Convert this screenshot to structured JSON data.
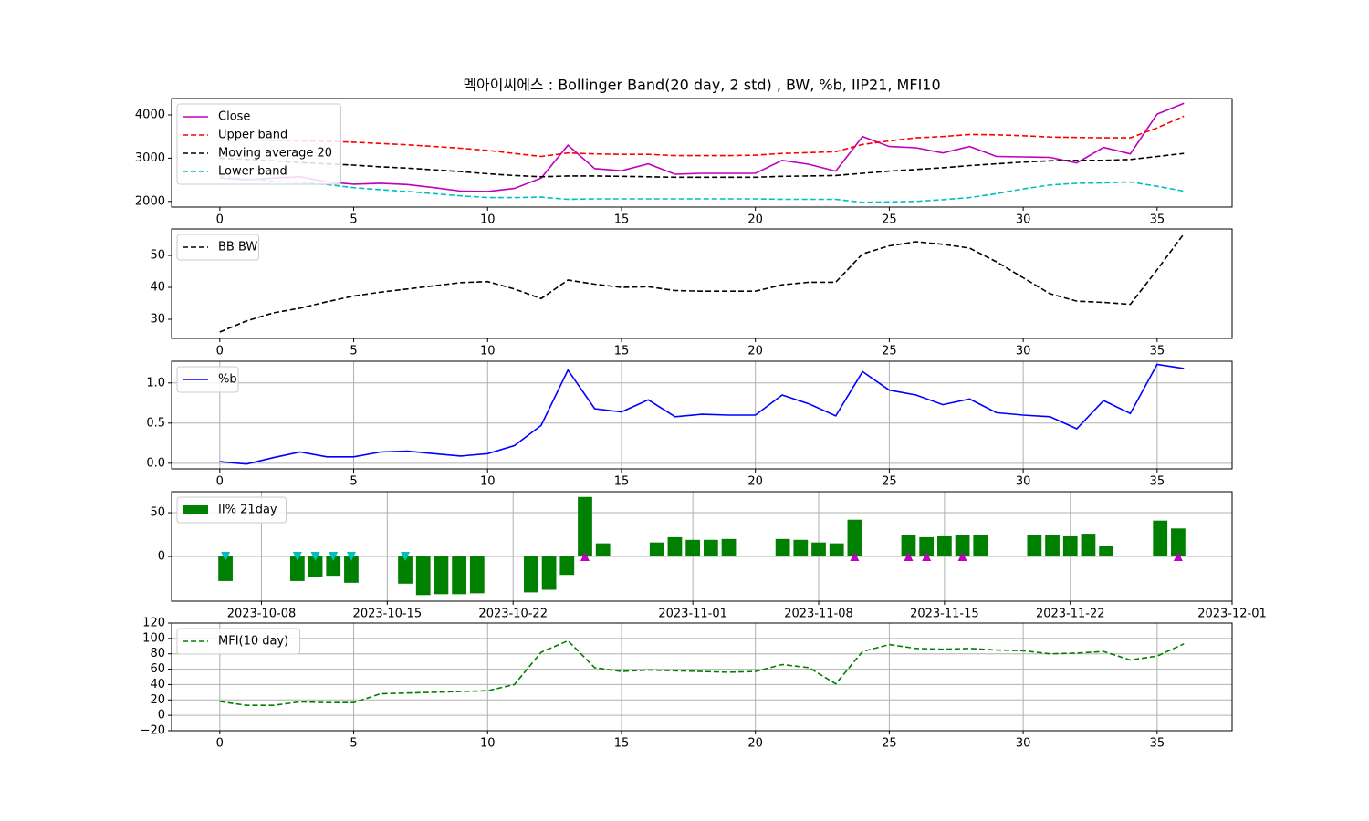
{
  "chart_data": [
    {
      "type": "line",
      "title": "멕아이씨에스 : Bollinger Band(20 day, 2 std) , BW, %b, IIP21, MFI10",
      "x": [
        0,
        1,
        2,
        3,
        4,
        5,
        6,
        7,
        8,
        9,
        10,
        11,
        12,
        13,
        14,
        15,
        16,
        17,
        18,
        19,
        20,
        21,
        22,
        23,
        24,
        25,
        26,
        27,
        28,
        29,
        30,
        31,
        32,
        33,
        34,
        35,
        36
      ],
      "xlim": [
        -1.8,
        37.8
      ],
      "xticks": [
        0,
        5,
        10,
        15,
        20,
        25,
        30,
        35
      ],
      "ylim": [
        1870,
        4380
      ],
      "yticks": [
        2000,
        3000,
        4000
      ],
      "grid": false,
      "legend": "upper left",
      "series": [
        {
          "name": "Close",
          "color": "#bf00bf",
          "linestyle": "solid",
          "values": [
            2540,
            2500,
            2540,
            2570,
            2450,
            2400,
            2420,
            2390,
            2320,
            2240,
            2230,
            2300,
            2540,
            3300,
            2760,
            2710,
            2870,
            2630,
            2650,
            2650,
            2650,
            2950,
            2860,
            2700,
            3500,
            3270,
            3240,
            3120,
            3270,
            3040,
            3030,
            3020,
            2890,
            3250,
            3100,
            4020,
            4270
          ]
        },
        {
          "name": "Upper band",
          "color": "#ff0000",
          "linestyle": "dashed",
          "values": [
            3420,
            3420,
            3410,
            3400,
            3390,
            3370,
            3340,
            3310,
            3270,
            3230,
            3180,
            3110,
            3040,
            3120,
            3100,
            3090,
            3090,
            3060,
            3060,
            3060,
            3070,
            3110,
            3130,
            3150,
            3320,
            3400,
            3470,
            3500,
            3550,
            3540,
            3520,
            3490,
            3480,
            3470,
            3470,
            3700,
            3970
          ]
        },
        {
          "name": "Moving average 20",
          "color": "#000000",
          "linestyle": "dashed",
          "values": [
            3000,
            2970,
            2940,
            2900,
            2870,
            2840,
            2800,
            2770,
            2730,
            2690,
            2640,
            2600,
            2570,
            2590,
            2590,
            2580,
            2570,
            2560,
            2560,
            2560,
            2560,
            2580,
            2590,
            2600,
            2650,
            2700,
            2740,
            2780,
            2830,
            2870,
            2910,
            2940,
            2950,
            2950,
            2970,
            3040,
            3110
          ]
        },
        {
          "name": "Lower band",
          "color": "#00bfbf",
          "linestyle": "dashed",
          "values": [
            2580,
            2520,
            2470,
            2440,
            2390,
            2320,
            2270,
            2230,
            2180,
            2130,
            2090,
            2090,
            2100,
            2050,
            2060,
            2060,
            2060,
            2060,
            2060,
            2060,
            2060,
            2050,
            2050,
            2050,
            1980,
            1990,
            2000,
            2040,
            2090,
            2180,
            2290,
            2380,
            2420,
            2430,
            2450,
            2350,
            2240
          ]
        }
      ]
    },
    {
      "type": "line",
      "x": [
        0,
        1,
        2,
        3,
        4,
        5,
        6,
        7,
        8,
        9,
        10,
        11,
        12,
        13,
        14,
        15,
        16,
        17,
        18,
        19,
        20,
        21,
        22,
        23,
        24,
        25,
        26,
        27,
        28,
        29,
        30,
        31,
        32,
        33,
        34,
        35,
        36
      ],
      "xlim": [
        -1.8,
        37.8
      ],
      "xticks": [
        0,
        5,
        10,
        15,
        20,
        25,
        30,
        35
      ],
      "ylim": [
        24,
        58.3
      ],
      "yticks": [
        30,
        40,
        50
      ],
      "grid": false,
      "legend": "upper left",
      "series": [
        {
          "name": "BB BW",
          "color": "#000000",
          "linestyle": "dashed",
          "values": [
            26,
            29.5,
            32,
            33.5,
            35.5,
            37.3,
            38.5,
            39.5,
            40.5,
            41.5,
            41.8,
            39.5,
            36.5,
            42.3,
            41,
            40,
            40.2,
            39,
            38.8,
            38.8,
            38.8,
            40.8,
            41.6,
            41.6,
            50.5,
            53,
            54.3,
            53.5,
            52.3,
            48,
            43,
            38,
            35.7,
            35.3,
            34.7,
            45.5,
            56.8
          ]
        }
      ]
    },
    {
      "type": "line",
      "x": [
        0,
        1,
        2,
        3,
        4,
        5,
        6,
        7,
        8,
        9,
        10,
        11,
        12,
        13,
        14,
        15,
        16,
        17,
        18,
        19,
        20,
        21,
        22,
        23,
        24,
        25,
        26,
        27,
        28,
        29,
        30,
        31,
        32,
        33,
        34,
        35,
        36
      ],
      "xlim": [
        -1.8,
        37.8
      ],
      "xticks": [
        0,
        5,
        10,
        15,
        20,
        25,
        30,
        35
      ],
      "ylim": [
        -0.07,
        1.27
      ],
      "yticks": [
        {
          "value": 0,
          "label": "0.0"
        },
        0.5,
        {
          "value": 1,
          "label": "1.0"
        }
      ],
      "grid": true,
      "legend": "upper left",
      "series": [
        {
          "name": "%b",
          "color": "#0000ff",
          "linestyle": "solid",
          "values": [
            0.02,
            -0.01,
            0.07,
            0.14,
            0.08,
            0.08,
            0.14,
            0.15,
            0.12,
            0.09,
            0.12,
            0.22,
            0.47,
            1.16,
            0.68,
            0.64,
            0.79,
            0.58,
            0.61,
            0.6,
            0.6,
            0.85,
            0.74,
            0.59,
            1.14,
            0.91,
            0.85,
            0.73,
            0.8,
            0.63,
            0.6,
            0.58,
            0.43,
            0.78,
            0.62,
            1.23,
            1.18
          ]
        }
      ]
    },
    {
      "type": "bar",
      "x": [
        "2023-10-06",
        "2023-10-10",
        "2023-10-11",
        "2023-10-12",
        "2023-10-13",
        "2023-10-16",
        "2023-10-17",
        "2023-10-18",
        "2023-10-19",
        "2023-10-20",
        "2023-10-23",
        "2023-10-24",
        "2023-10-25",
        "2023-10-26",
        "2023-10-27",
        "2023-10-30",
        "2023-10-31",
        "2023-11-01",
        "2023-11-02",
        "2023-11-03",
        "2023-11-06",
        "2023-11-07",
        "2023-11-08",
        "2023-11-09",
        "2023-11-10",
        "2023-11-13",
        "2023-11-14",
        "2023-11-15",
        "2023-11-16",
        "2023-11-17",
        "2023-11-20",
        "2023-11-21",
        "2023-11-22",
        "2023-11-23",
        "2023-11-24",
        "2023-11-27",
        "2023-11-28"
      ],
      "xlim": [
        "2023-10-03",
        "2023-12-01"
      ],
      "xticks": [
        "2023-10-08",
        "2023-10-15",
        "2023-10-22",
        "2023-11-01",
        "2023-11-08",
        "2023-11-15",
        "2023-11-22",
        "2023-12-01"
      ],
      "ylim": [
        -51,
        74
      ],
      "yticks": [
        0,
        50
      ],
      "grid": true,
      "legend": "upper left",
      "series": [
        {
          "name": "II% 21day",
          "color": "#008000",
          "values": [
            -28,
            -28,
            -23,
            -22,
            -30,
            -31,
            -44,
            -43,
            -43,
            -42,
            -41,
            -38,
            -21,
            68,
            15,
            16,
            22,
            19,
            19,
            20,
            20,
            19,
            16,
            15,
            42,
            24,
            22,
            23,
            24,
            24,
            24,
            24,
            23,
            26,
            12,
            41,
            32
          ]
        }
      ],
      "markers": [
        {
          "marker": "down",
          "color": "#00bfbf",
          "x": [
            "2023-10-06",
            "2023-10-10",
            "2023-10-11",
            "2023-10-12",
            "2023-10-13",
            "2023-10-16"
          ],
          "values": [
            0,
            0,
            0,
            0,
            0,
            0
          ]
        },
        {
          "marker": "up",
          "color": "#bf00bf",
          "x": [
            "2023-10-26",
            "2023-11-10",
            "2023-11-13",
            "2023-11-14",
            "2023-11-16",
            "2023-11-28"
          ],
          "values": [
            0,
            0,
            0,
            0,
            0,
            0
          ]
        }
      ]
    },
    {
      "type": "line",
      "x": [
        0,
        1,
        2,
        3,
        4,
        5,
        6,
        7,
        8,
        9,
        10,
        11,
        12,
        13,
        14,
        15,
        16,
        17,
        18,
        19,
        20,
        21,
        22,
        23,
        24,
        25,
        26,
        27,
        28,
        29,
        30,
        31,
        32,
        33,
        34,
        35,
        36
      ],
      "xlim": [
        -1.8,
        37.8
      ],
      "xticks": [
        0,
        5,
        10,
        15,
        20,
        25,
        30,
        35
      ],
      "ylim": [
        -20,
        120
      ],
      "yticks": [
        {
          "value": -20,
          "label": "−20"
        },
        0,
        20,
        40,
        60,
        80,
        100,
        120
      ],
      "grid": true,
      "legend": "upper left",
      "series": [
        {
          "name": "MFI(10 day)",
          "color": "#008000",
          "linestyle": "dashed",
          "values": [
            18,
            13,
            13,
            17.5,
            16.5,
            16.5,
            28,
            29,
            30,
            31,
            32,
            40,
            82,
            97,
            62,
            57,
            59,
            58,
            57,
            56,
            57,
            66,
            62,
            41,
            83,
            92,
            87,
            86,
            87,
            85,
            84,
            80,
            81,
            83,
            72,
            77,
            93
          ]
        }
      ]
    }
  ]
}
